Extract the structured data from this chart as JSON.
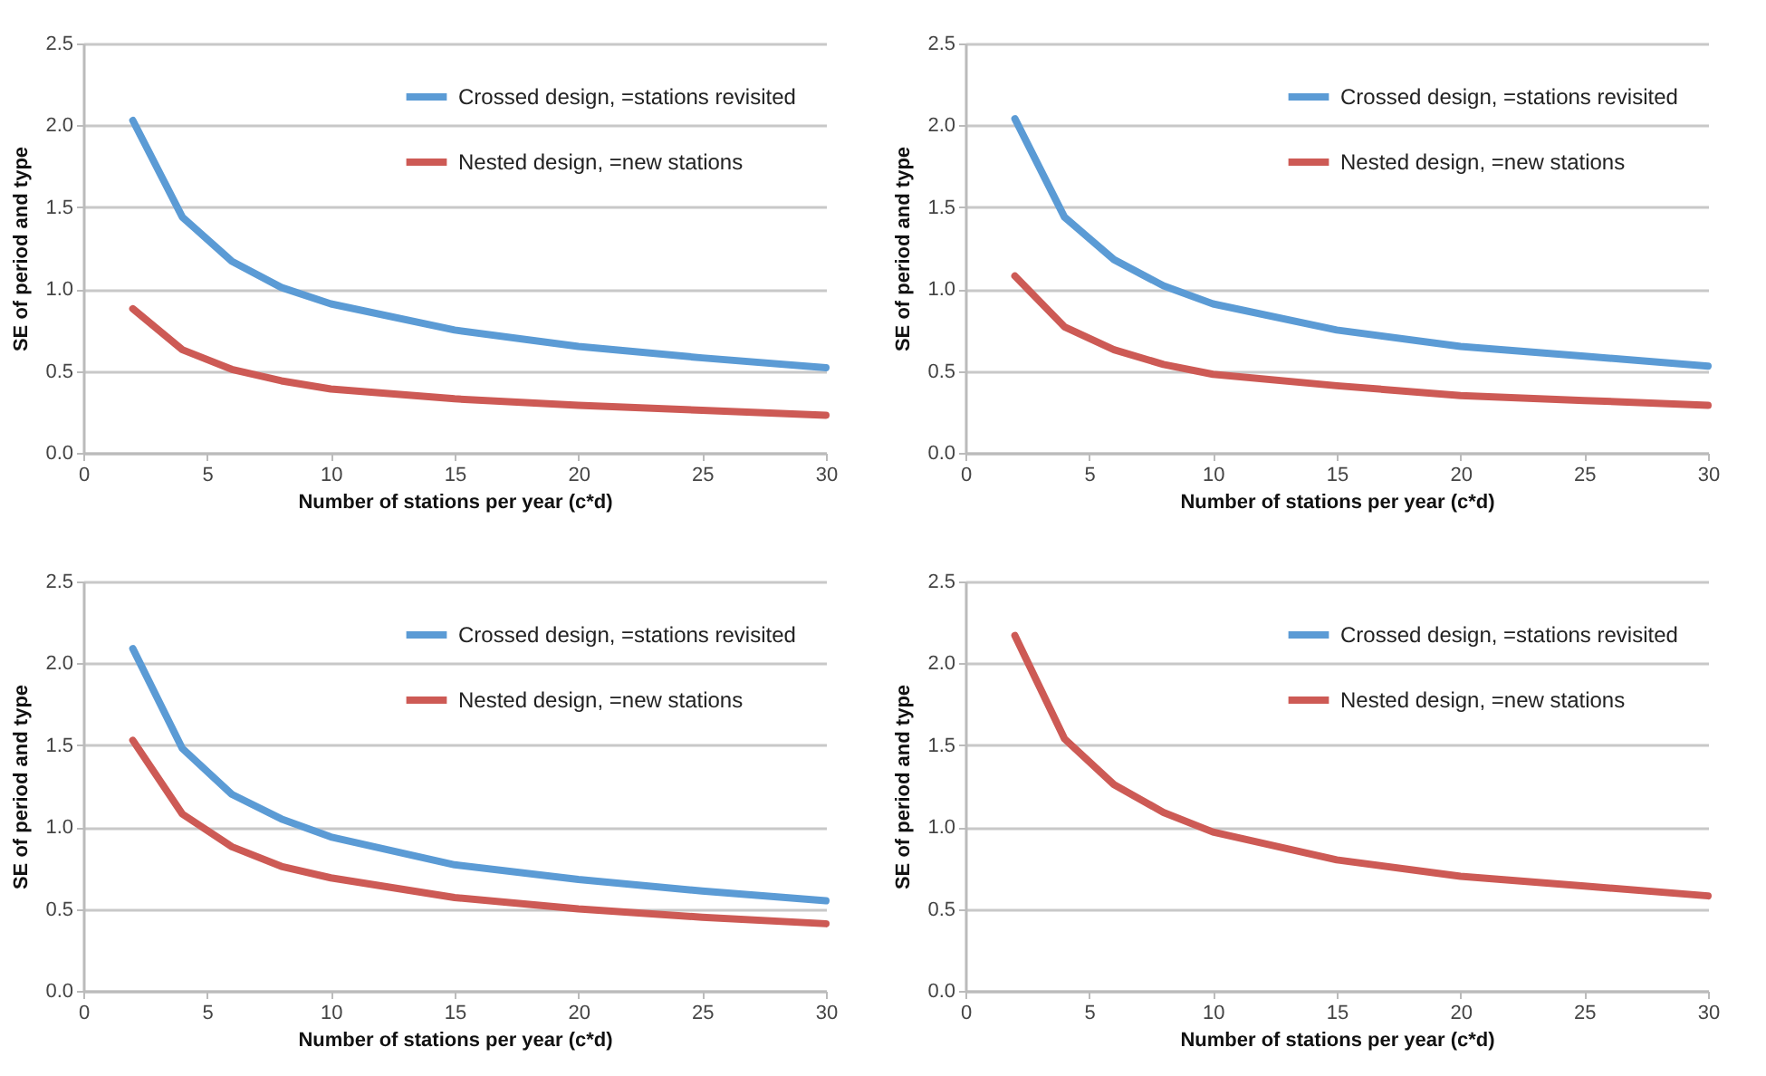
{
  "chart_data": [
    {
      "type": "line",
      "xlabel": "Number of stations per year (c*d)",
      "ylabel": "SE of period and type",
      "x": [
        2,
        4,
        6,
        8,
        10,
        15,
        20,
        25,
        30
      ],
      "xlim": [
        0,
        30
      ],
      "xticks": [
        0,
        5,
        10,
        15,
        20,
        25,
        30
      ],
      "ylim": [
        0,
        2.5
      ],
      "yticks": [
        {
          "value": 0,
          "label": "0.0"
        },
        {
          "value": 0.5,
          "label": "0.5"
        },
        {
          "value": 1,
          "label": "1.0"
        },
        {
          "value": 1.5,
          "label": "1.5"
        },
        {
          "value": 2,
          "label": "2.0"
        },
        {
          "value": 2.5,
          "label": "2.5"
        }
      ],
      "grid": "y",
      "legend": "top right",
      "marker": "none",
      "line_style": "solid",
      "series": [
        {
          "name": "Crossed design, =stations revisited",
          "color": "#5b9bd5",
          "values": [
            2.03,
            1.44,
            1.17,
            1.01,
            0.91,
            0.75,
            0.65,
            0.58,
            0.52
          ]
        },
        {
          "name": "Nested design, =new stations",
          "color": "#cd5a55",
          "values": [
            0.88,
            0.63,
            0.51,
            0.44,
            0.39,
            0.33,
            0.29,
            0.26,
            0.23
          ]
        }
      ]
    },
    {
      "type": "line",
      "xlabel": "Number of stations per year (c*d)",
      "ylabel": "SE of period and type",
      "x": [
        2,
        4,
        6,
        8,
        10,
        15,
        20,
        25,
        30
      ],
      "xlim": [
        0,
        30
      ],
      "xticks": [
        0,
        5,
        10,
        15,
        20,
        25,
        30
      ],
      "ylim": [
        0,
        2.5
      ],
      "yticks": [
        {
          "value": 0,
          "label": "0.0"
        },
        {
          "value": 0.5,
          "label": "0.5"
        },
        {
          "value": 1,
          "label": "1.0"
        },
        {
          "value": 1.5,
          "label": "1.5"
        },
        {
          "value": 2,
          "label": "2.0"
        },
        {
          "value": 2.5,
          "label": "2.5"
        }
      ],
      "grid": "y",
      "legend": "top right",
      "marker": "none",
      "line_style": "solid",
      "series": [
        {
          "name": "Crossed design, =stations revisited",
          "color": "#5b9bd5",
          "values": [
            2.04,
            1.44,
            1.18,
            1.02,
            0.91,
            0.75,
            0.65,
            0.59,
            0.53
          ]
        },
        {
          "name": "Nested design, =new stations",
          "color": "#cd5a55",
          "values": [
            1.08,
            0.77,
            0.63,
            0.54,
            0.48,
            0.41,
            0.35,
            0.32,
            0.29
          ]
        }
      ]
    },
    {
      "type": "line",
      "xlabel": "Number of stations per year (c*d)",
      "ylabel": "SE of period and type",
      "x": [
        2,
        4,
        6,
        8,
        10,
        15,
        20,
        25,
        30
      ],
      "xlim": [
        0,
        30
      ],
      "xticks": [
        0,
        5,
        10,
        15,
        20,
        25,
        30
      ],
      "ylim": [
        0,
        2.5
      ],
      "yticks": [
        {
          "value": 0,
          "label": "0.0"
        },
        {
          "value": 0.5,
          "label": "0.5"
        },
        {
          "value": 1,
          "label": "1.0"
        },
        {
          "value": 1.5,
          "label": "1.5"
        },
        {
          "value": 2,
          "label": "2.0"
        },
        {
          "value": 2.5,
          "label": "2.5"
        }
      ],
      "grid": "y",
      "legend": "top right",
      "marker": "none",
      "line_style": "solid",
      "series": [
        {
          "name": "Crossed design, =stations revisited",
          "color": "#5b9bd5",
          "values": [
            2.09,
            1.48,
            1.2,
            1.05,
            0.94,
            0.77,
            0.68,
            0.61,
            0.55
          ]
        },
        {
          "name": "Nested design, =new stations",
          "color": "#cd5a55",
          "values": [
            1.53,
            1.08,
            0.88,
            0.76,
            0.69,
            0.57,
            0.5,
            0.45,
            0.41
          ]
        }
      ]
    },
    {
      "type": "line",
      "xlabel": "Number of stations per year (c*d)",
      "ylabel": "SE of period and type",
      "x": [
        2,
        4,
        6,
        8,
        10,
        15,
        20,
        25,
        30
      ],
      "xlim": [
        0,
        30
      ],
      "xticks": [
        0,
        5,
        10,
        15,
        20,
        25,
        30
      ],
      "ylim": [
        0,
        2.5
      ],
      "yticks": [
        {
          "value": 0,
          "label": "0.0"
        },
        {
          "value": 0.5,
          "label": "0.5"
        },
        {
          "value": 1,
          "label": "1.0"
        },
        {
          "value": 1.5,
          "label": "1.5"
        },
        {
          "value": 2,
          "label": "2.0"
        },
        {
          "value": 2.5,
          "label": "2.5"
        }
      ],
      "grid": "y",
      "legend": "top right",
      "marker": "none",
      "line_style": "solid",
      "series": [
        {
          "name": "Crossed design, =stations revisited",
          "color": "#5b9bd5",
          "values": [
            null,
            null,
            null,
            null,
            null,
            null,
            null,
            null,
            null
          ]
        },
        {
          "name": "Nested design, =new stations",
          "color": "#cd5a55",
          "values": [
            2.17,
            1.54,
            1.26,
            1.09,
            0.97,
            0.8,
            0.7,
            0.64,
            0.58
          ]
        }
      ]
    }
  ]
}
